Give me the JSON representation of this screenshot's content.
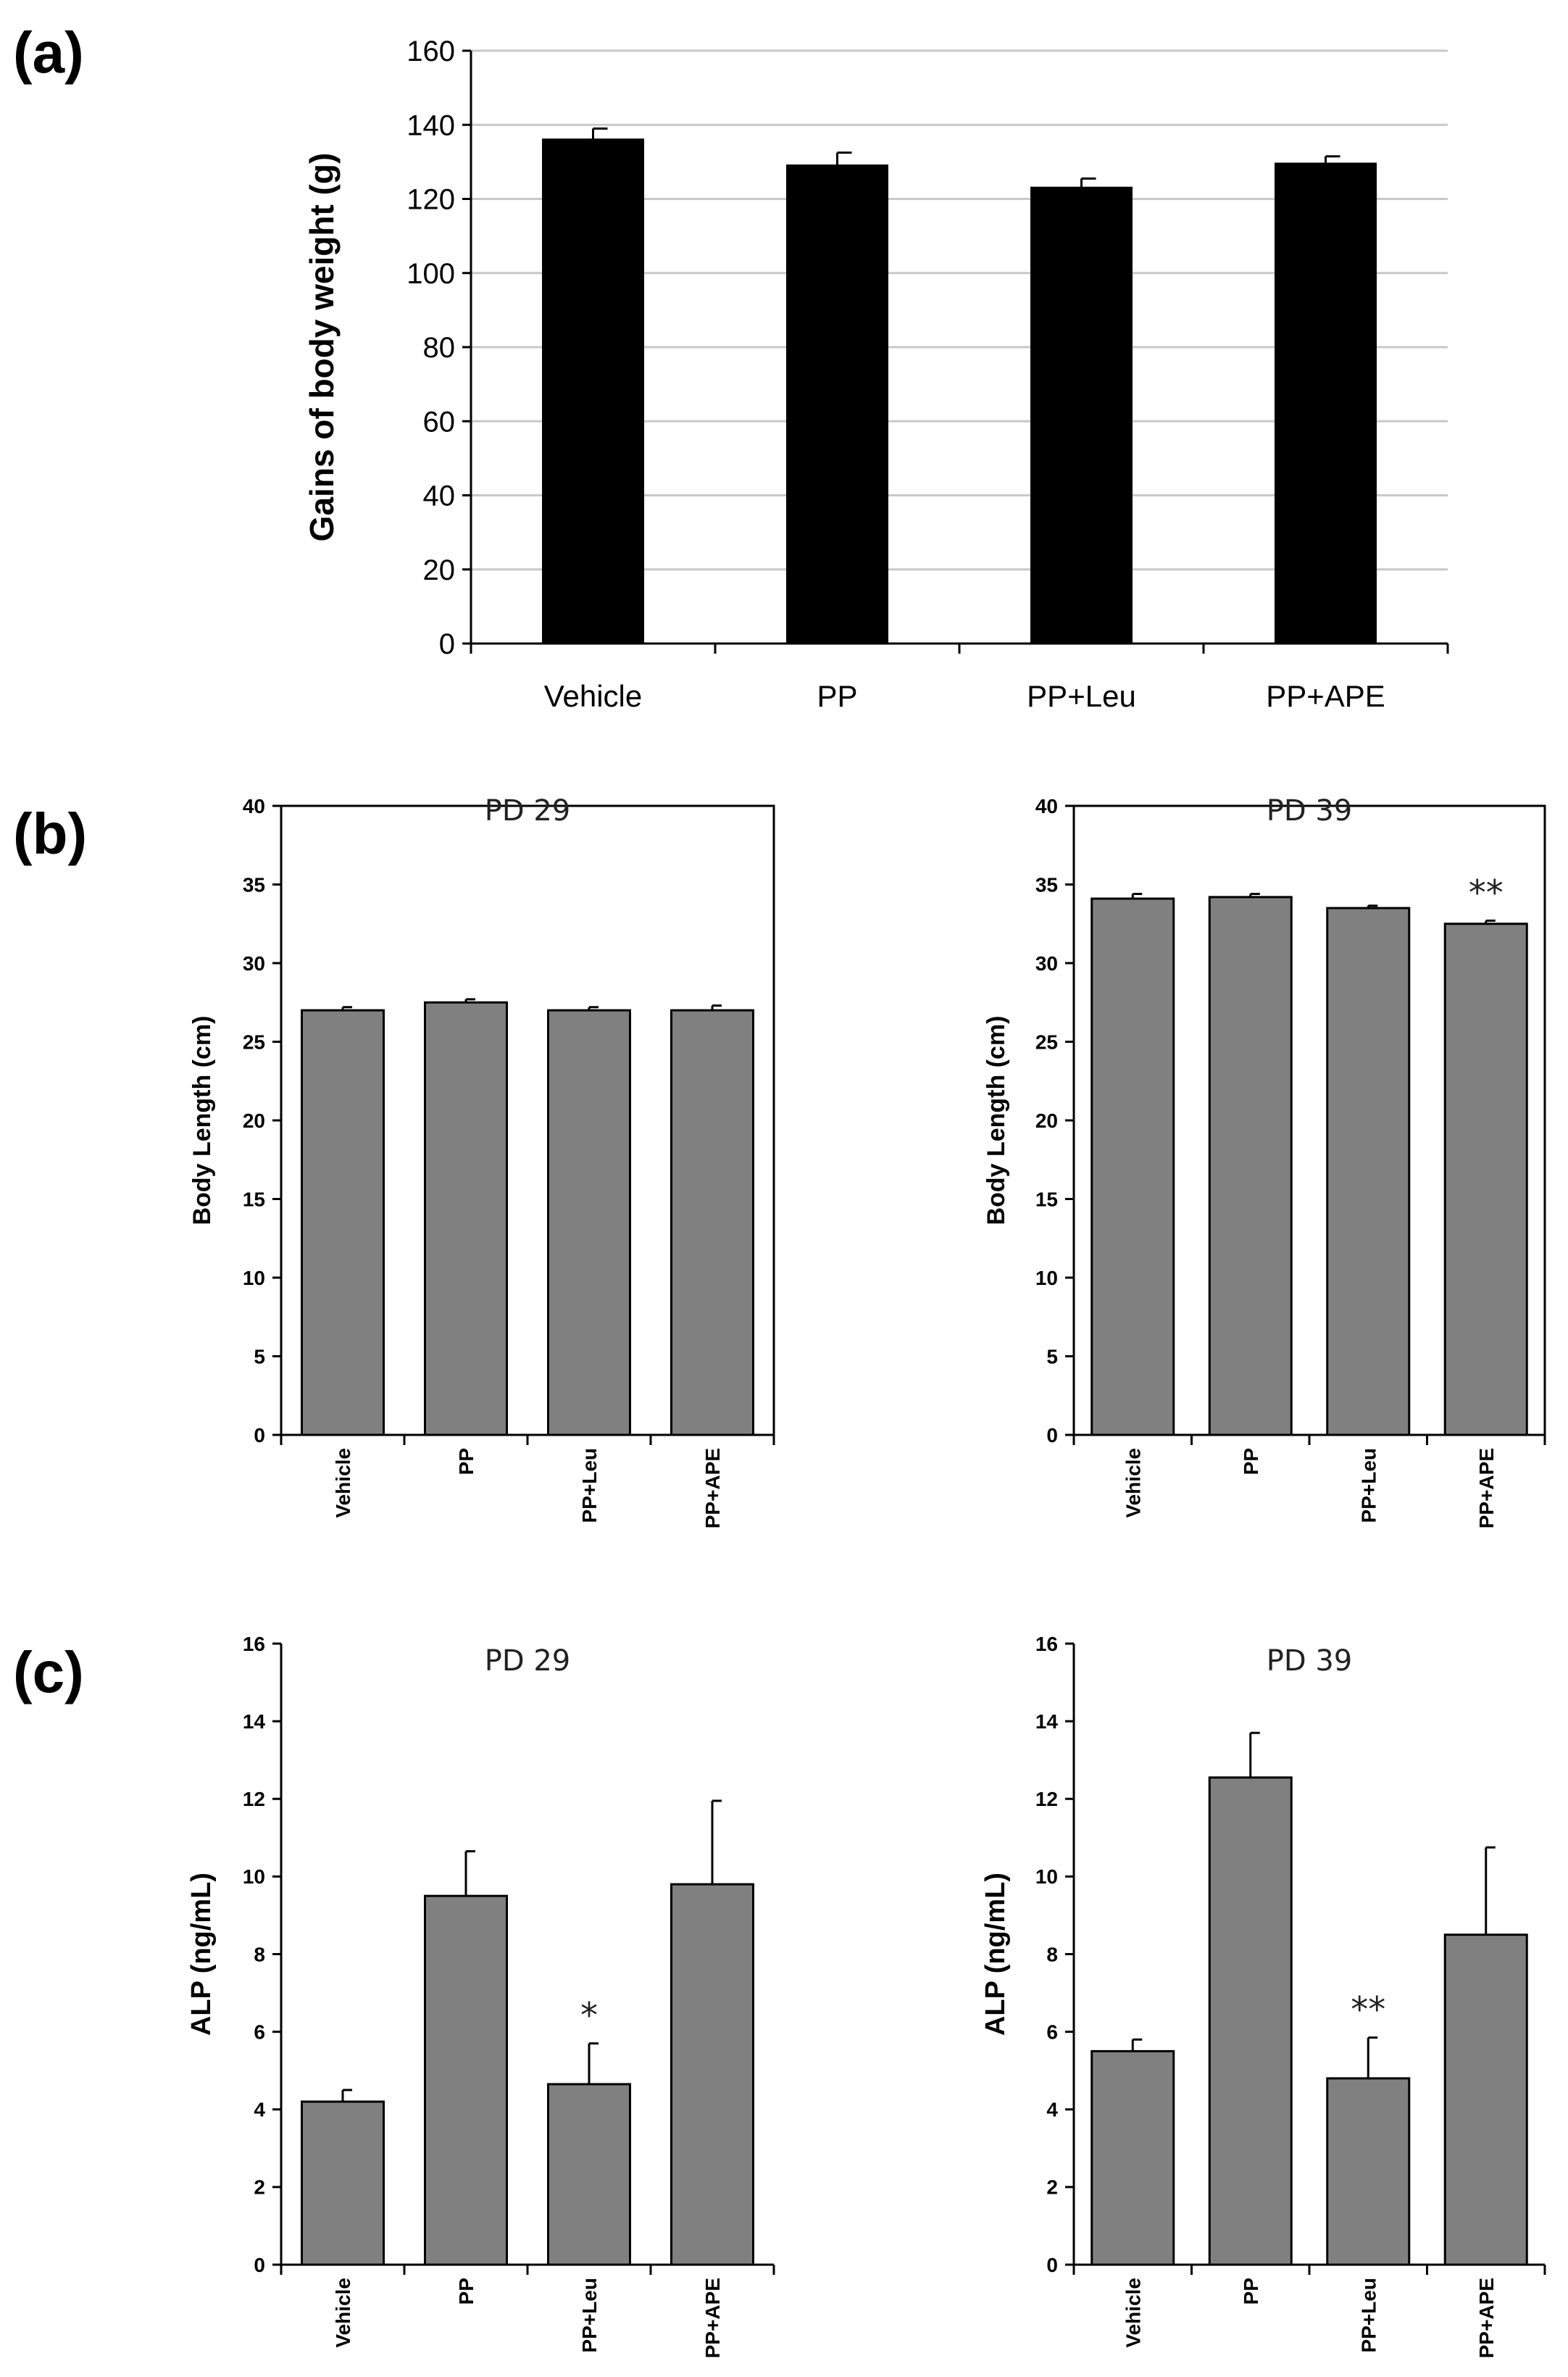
{
  "panel_labels": [
    "(a)",
    "(b)",
    "(c)"
  ],
  "colors": {
    "black_bar": "#000000",
    "gray_bar": "#808080",
    "gridline": "#c8c8c8",
    "axis": "#000000"
  },
  "chart_data": [
    {
      "id": "a",
      "type": "bar",
      "title": "",
      "panel_label": "(a)",
      "categories": [
        "Vehicle",
        "PP",
        "PP+Leu",
        "PP+APE"
      ],
      "values": [
        136,
        129,
        123,
        129.5
      ],
      "errors": [
        3,
        3.5,
        2.5,
        2
      ],
      "significance": [
        "",
        "",
        "",
        ""
      ],
      "xlabel": "",
      "ylabel": "Gains of body weight  (g)",
      "ylim": [
        0,
        160
      ],
      "yticks": [
        "0",
        "20",
        "40",
        "60",
        "80",
        "100",
        "120",
        "140",
        "160"
      ],
      "grid": true,
      "bar_color": "#000000"
    },
    {
      "id": "b1",
      "type": "bar",
      "title": "PD 29",
      "panel_label": "(b)",
      "categories": [
        "Vehicle",
        "PP",
        "PP+Leu",
        "PP+APE"
      ],
      "values": [
        27,
        27.5,
        27,
        27
      ],
      "errors": [
        0.2,
        0.2,
        0.2,
        0.3
      ],
      "significance": [
        "",
        "",
        "",
        ""
      ],
      "xlabel": "",
      "ylabel": "Body Length (cm)",
      "ylim": [
        0,
        40
      ],
      "yticks": [
        "0",
        "5",
        "10",
        "15",
        "20",
        "25",
        "30",
        "35",
        "40"
      ],
      "grid": false,
      "bar_color": "#808080"
    },
    {
      "id": "b2",
      "type": "bar",
      "title": "PD 39",
      "panel_label": "",
      "categories": [
        "Vehicle",
        "PP",
        "PP+Leu",
        "PP+APE"
      ],
      "values": [
        34.1,
        34.2,
        33.5,
        32.5
      ],
      "errors": [
        0.3,
        0.2,
        0.15,
        0.2
      ],
      "significance": [
        "",
        "",
        "",
        "**"
      ],
      "xlabel": "",
      "ylabel": "Body Length (cm)",
      "ylim": [
        0,
        40
      ],
      "yticks": [
        "0",
        "5",
        "10",
        "15",
        "20",
        "25",
        "30",
        "35",
        "40"
      ],
      "grid": false,
      "bar_color": "#808080"
    },
    {
      "id": "c1",
      "type": "bar",
      "title": "PD 29",
      "panel_label": "(c)",
      "categories": [
        "Vehicle",
        "PP",
        "PP+Leu",
        "PP+APE"
      ],
      "values": [
        4.2,
        9.5,
        4.65,
        9.8
      ],
      "errors": [
        0.3,
        1.15,
        1.05,
        2.15
      ],
      "significance": [
        "",
        "",
        "*",
        ""
      ],
      "xlabel": "",
      "ylabel": "ALP (ng/mL)",
      "ylim": [
        0,
        16
      ],
      "yticks": [
        "0",
        "2",
        "4",
        "6",
        "8",
        "10",
        "12",
        "14",
        "16"
      ],
      "grid": false,
      "bar_color": "#808080"
    },
    {
      "id": "c2",
      "type": "bar",
      "title": "PD 39",
      "panel_label": "",
      "categories": [
        "Vehicle",
        "PP",
        "PP+Leu",
        "PP+APE"
      ],
      "values": [
        5.5,
        12.55,
        4.8,
        8.5
      ],
      "errors": [
        0.3,
        1.15,
        1.05,
        2.25
      ],
      "significance": [
        "",
        "",
        "**",
        ""
      ],
      "xlabel": "",
      "ylabel": "ALP (ng/mL)",
      "ylim": [
        0,
        16
      ],
      "yticks": [
        "0",
        "2",
        "4",
        "6",
        "8",
        "10",
        "12",
        "14",
        "16"
      ],
      "grid": false,
      "bar_color": "#808080"
    }
  ]
}
